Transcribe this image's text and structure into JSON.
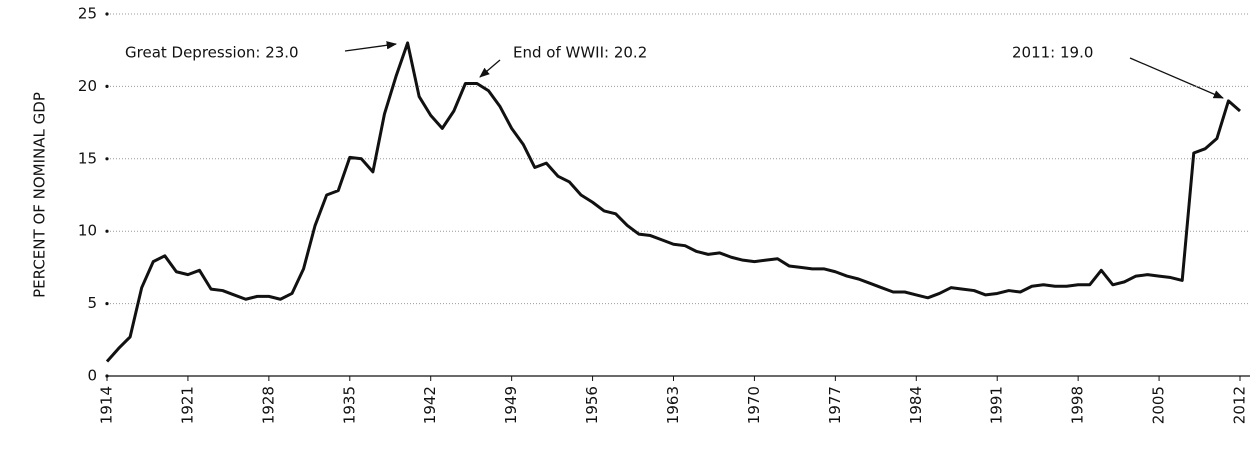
{
  "chart_data": {
    "type": "line",
    "y_label": "PERCENT OF NOMINAL GDP",
    "x": [
      1914,
      1915,
      1916,
      1917,
      1918,
      1919,
      1920,
      1921,
      1922,
      1923,
      1924,
      1925,
      1926,
      1927,
      1928,
      1929,
      1930,
      1931,
      1932,
      1933,
      1934,
      1935,
      1936,
      1937,
      1938,
      1939,
      1940,
      1941,
      1942,
      1943,
      1944,
      1945,
      1946,
      1947,
      1948,
      1949,
      1950,
      1951,
      1952,
      1953,
      1954,
      1955,
      1956,
      1957,
      1958,
      1959,
      1960,
      1961,
      1962,
      1963,
      1964,
      1965,
      1966,
      1967,
      1968,
      1969,
      1970,
      1971,
      1972,
      1973,
      1974,
      1975,
      1976,
      1977,
      1978,
      1979,
      1980,
      1981,
      1982,
      1983,
      1984,
      1985,
      1986,
      1987,
      1988,
      1989,
      1990,
      1991,
      1992,
      1993,
      1994,
      1995,
      1996,
      1997,
      1998,
      1999,
      2000,
      2001,
      2002,
      2003,
      2004,
      2005,
      2006,
      2007,
      2008,
      2009,
      2010,
      2011,
      2012
    ],
    "values": [
      1.0,
      1.9,
      2.7,
      6.1,
      7.9,
      8.3,
      7.2,
      7.0,
      7.3,
      6.0,
      5.9,
      5.6,
      5.3,
      5.5,
      5.5,
      5.3,
      5.7,
      7.4,
      10.4,
      12.5,
      12.8,
      15.1,
      15.0,
      14.1,
      18.1,
      20.7,
      23.0,
      19.3,
      18.0,
      17.1,
      18.3,
      20.2,
      20.2,
      19.7,
      18.6,
      17.1,
      16.0,
      14.4,
      14.7,
      13.8,
      13.4,
      12.5,
      12.0,
      11.4,
      11.2,
      10.4,
      9.8,
      9.7,
      9.4,
      9.1,
      9.0,
      8.6,
      8.4,
      8.5,
      8.2,
      8.0,
      7.9,
      8.0,
      8.1,
      7.6,
      7.5,
      7.4,
      7.4,
      7.2,
      6.9,
      6.7,
      6.4,
      6.1,
      5.8,
      5.8,
      5.6,
      5.4,
      5.7,
      6.1,
      6.0,
      5.9,
      5.6,
      5.7,
      5.9,
      5.8,
      6.2,
      6.3,
      6.2,
      6.2,
      6.3,
      6.3,
      7.3,
      6.3,
      6.5,
      6.9,
      7.0,
      6.9,
      6.8,
      6.6,
      15.4,
      15.7,
      16.4,
      19.0,
      18.3
    ],
    "color": "#111111",
    "xlim": [
      1914,
      2012
    ],
    "xticks": [
      1914,
      1921,
      1928,
      1935,
      1942,
      1949,
      1956,
      1963,
      1970,
      1977,
      1984,
      1991,
      1998,
      2005,
      2012
    ],
    "ylim": [
      0,
      25
    ],
    "yticks": [
      0,
      5,
      10,
      15,
      20,
      25
    ],
    "grid": true,
    "annotations": [
      "Great Depression: 23.0",
      "End of WWII: 20.2",
      "2011: 19.0"
    ]
  }
}
